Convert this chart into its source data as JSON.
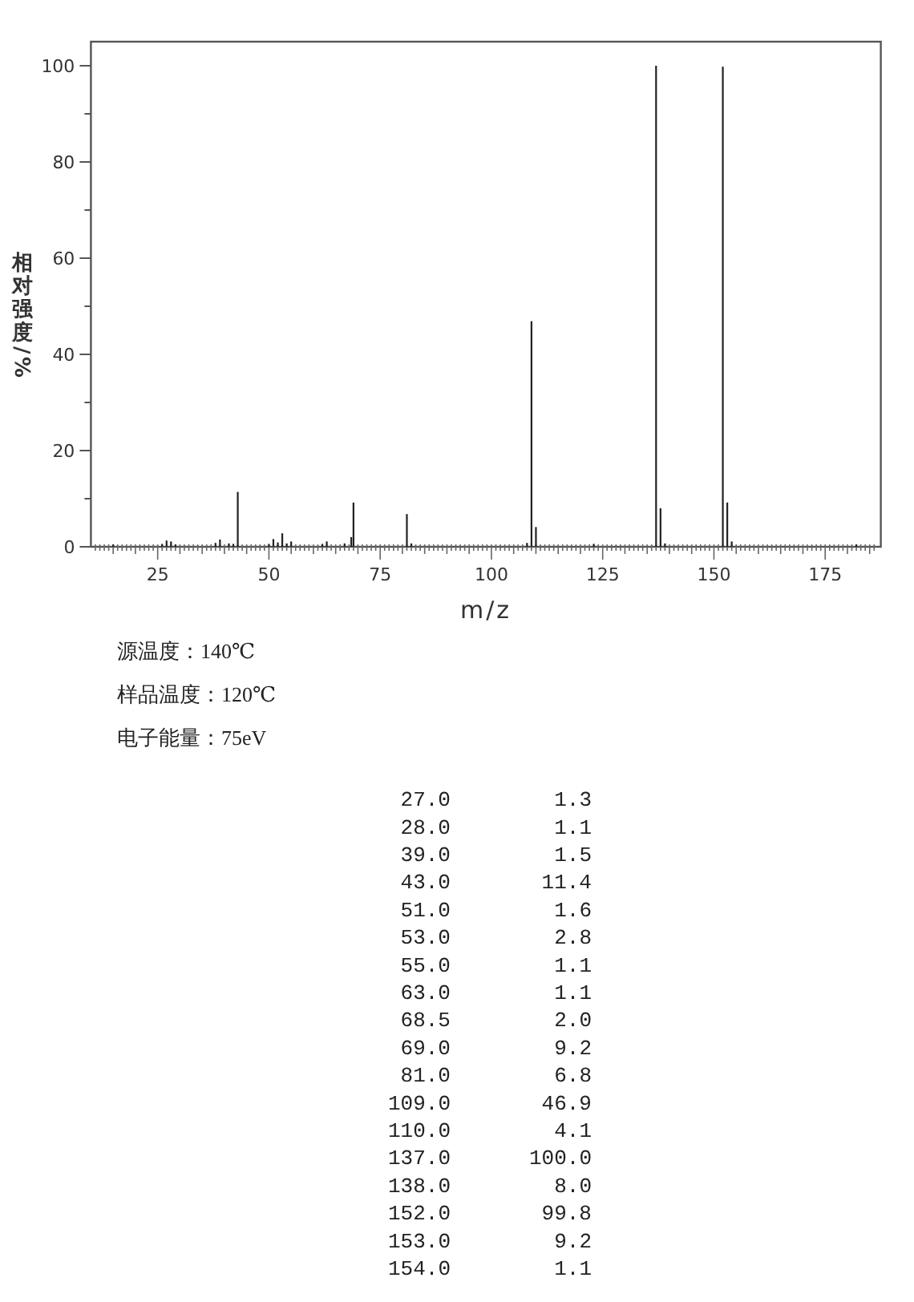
{
  "chart_data": [
    {
      "type": "bar",
      "xlabel": "m/z",
      "ylabel": "相对强度/%",
      "xlim": [
        10,
        187.5
      ],
      "ylim": [
        0,
        105
      ],
      "xticks": [
        {
          "value": 11,
          "label": null
        },
        {
          "value": 12,
          "label": null
        },
        {
          "value": 13,
          "label": null
        },
        {
          "value": 14,
          "label": null
        },
        {
          "value": 15,
          "label": null
        },
        {
          "value": 16,
          "label": null
        },
        {
          "value": 17,
          "label": null
        },
        {
          "value": 18,
          "label": null
        },
        {
          "value": 19,
          "label": null
        },
        {
          "value": 20,
          "label": null
        },
        {
          "value": 21,
          "label": null
        },
        {
          "value": 22,
          "label": null
        },
        {
          "value": 23,
          "label": null
        },
        {
          "value": 24,
          "label": null
        },
        25,
        {
          "value": 26,
          "label": null
        },
        {
          "value": 27,
          "label": null
        },
        {
          "value": 28,
          "label": null
        },
        {
          "value": 29,
          "label": null
        },
        {
          "value": 30,
          "label": null
        },
        {
          "value": 31,
          "label": null
        },
        {
          "value": 32,
          "label": null
        },
        {
          "value": 33,
          "label": null
        },
        {
          "value": 34,
          "label": null
        },
        {
          "value": 35,
          "label": null
        },
        {
          "value": 36,
          "label": null
        },
        {
          "value": 37,
          "label": null
        },
        {
          "value": 38,
          "label": null
        },
        {
          "value": 39,
          "label": null
        },
        {
          "value": 40,
          "label": null
        },
        {
          "value": 41,
          "label": null
        },
        {
          "value": 42,
          "label": null
        },
        {
          "value": 43,
          "label": null
        },
        {
          "value": 44,
          "label": null
        },
        {
          "value": 45,
          "label": null
        },
        {
          "value": 46,
          "label": null
        },
        {
          "value": 47,
          "label": null
        },
        {
          "value": 48,
          "label": null
        },
        {
          "value": 49,
          "label": null
        },
        50,
        {
          "value": 51,
          "label": null
        },
        {
          "value": 52,
          "label": null
        },
        {
          "value": 53,
          "label": null
        },
        {
          "value": 54,
          "label": null
        },
        {
          "value": 55,
          "label": null
        },
        {
          "value": 56,
          "label": null
        },
        {
          "value": 57,
          "label": null
        },
        {
          "value": 58,
          "label": null
        },
        {
          "value": 59,
          "label": null
        },
        {
          "value": 60,
          "label": null
        },
        {
          "value": 61,
          "label": null
        },
        {
          "value": 62,
          "label": null
        },
        {
          "value": 63,
          "label": null
        },
        {
          "value": 64,
          "label": null
        },
        {
          "value": 65,
          "label": null
        },
        {
          "value": 66,
          "label": null
        },
        {
          "value": 67,
          "label": null
        },
        {
          "value": 68,
          "label": null
        },
        {
          "value": 69,
          "label": null
        },
        {
          "value": 70,
          "label": null
        },
        {
          "value": 71,
          "label": null
        },
        {
          "value": 72,
          "label": null
        },
        {
          "value": 73,
          "label": null
        },
        {
          "value": 74,
          "label": null
        },
        75,
        {
          "value": 76,
          "label": null
        },
        {
          "value": 77,
          "label": null
        },
        {
          "value": 78,
          "label": null
        },
        {
          "value": 79,
          "label": null
        },
        {
          "value": 80,
          "label": null
        },
        {
          "value": 81,
          "label": null
        },
        {
          "value": 82,
          "label": null
        },
        {
          "value": 83,
          "label": null
        },
        {
          "value": 84,
          "label": null
        },
        {
          "value": 85,
          "label": null
        },
        {
          "value": 86,
          "label": null
        },
        {
          "value": 87,
          "label": null
        },
        {
          "value": 88,
          "label": null
        },
        {
          "value": 89,
          "label": null
        },
        {
          "value": 90,
          "label": null
        },
        {
          "value": 91,
          "label": null
        },
        {
          "value": 92,
          "label": null
        },
        {
          "value": 93,
          "label": null
        },
        {
          "value": 94,
          "label": null
        },
        {
          "value": 95,
          "label": null
        },
        {
          "value": 96,
          "label": null
        },
        {
          "value": 97,
          "label": null
        },
        {
          "value": 98,
          "label": null
        },
        {
          "value": 99,
          "label": null
        },
        100,
        {
          "value": 101,
          "label": null
        },
        {
          "value": 102,
          "label": null
        },
        {
          "value": 103,
          "label": null
        },
        {
          "value": 104,
          "label": null
        },
        {
          "value": 105,
          "label": null
        },
        {
          "value": 106,
          "label": null
        },
        {
          "value": 107,
          "label": null
        },
        {
          "value": 108,
          "label": null
        },
        {
          "value": 109,
          "label": null
        },
        {
          "value": 110,
          "label": null
        },
        {
          "value": 111,
          "label": null
        },
        {
          "value": 112,
          "label": null
        },
        {
          "value": 113,
          "label": null
        },
        {
          "value": 114,
          "label": null
        },
        {
          "value": 115,
          "label": null
        },
        {
          "value": 116,
          "label": null
        },
        {
          "value": 117,
          "label": null
        },
        {
          "value": 118,
          "label": null
        },
        {
          "value": 119,
          "label": null
        },
        {
          "value": 120,
          "label": null
        },
        {
          "value": 121,
          "label": null
        },
        {
          "value": 122,
          "label": null
        },
        {
          "value": 123,
          "label": null
        },
        {
          "value": 124,
          "label": null
        },
        125,
        {
          "value": 126,
          "label": null
        },
        {
          "value": 127,
          "label": null
        },
        {
          "value": 128,
          "label": null
        },
        {
          "value": 129,
          "label": null
        },
        {
          "value": 130,
          "label": null
        },
        {
          "value": 131,
          "label": null
        },
        {
          "value": 132,
          "label": null
        },
        {
          "value": 133,
          "label": null
        },
        {
          "value": 134,
          "label": null
        },
        {
          "value": 135,
          "label": null
        },
        {
          "value": 136,
          "label": null
        },
        {
          "value": 137,
          "label": null
        },
        {
          "value": 138,
          "label": null
        },
        {
          "value": 139,
          "label": null
        },
        {
          "value": 140,
          "label": null
        },
        {
          "value": 141,
          "label": null
        },
        {
          "value": 142,
          "label": null
        },
        {
          "value": 143,
          "label": null
        },
        {
          "value": 144,
          "label": null
        },
        {
          "value": 145,
          "label": null
        },
        {
          "value": 146,
          "label": null
        },
        {
          "value": 147,
          "label": null
        },
        {
          "value": 148,
          "label": null
        },
        {
          "value": 149,
          "label": null
        },
        150,
        {
          "value": 151,
          "label": null
        },
        {
          "value": 152,
          "label": null
        },
        {
          "value": 153,
          "label": null
        },
        {
          "value": 154,
          "label": null
        },
        {
          "value": 155,
          "label": null
        },
        {
          "value": 156,
          "label": null
        },
        {
          "value": 157,
          "label": null
        },
        {
          "value": 158,
          "label": null
        },
        {
          "value": 159,
          "label": null
        },
        {
          "value": 160,
          "label": null
        },
        {
          "value": 161,
          "label": null
        },
        {
          "value": 162,
          "label": null
        },
        {
          "value": 163,
          "label": null
        },
        {
          "value": 164,
          "label": null
        },
        {
          "value": 165,
          "label": null
        },
        {
          "value": 166,
          "label": null
        },
        {
          "value": 167,
          "label": null
        },
        {
          "value": 168,
          "label": null
        },
        {
          "value": 169,
          "label": null
        },
        {
          "value": 170,
          "label": null
        },
        {
          "value": 171,
          "label": null
        },
        {
          "value": 172,
          "label": null
        },
        {
          "value": 173,
          "label": null
        },
        {
          "value": 174,
          "label": null
        },
        175,
        {
          "value": 176,
          "label": null
        },
        {
          "value": 177,
          "label": null
        },
        {
          "value": 178,
          "label": null
        },
        {
          "value": 179,
          "label": null
        },
        {
          "value": 180,
          "label": null
        },
        {
          "value": 181,
          "label": null
        },
        {
          "value": 182,
          "label": null
        },
        {
          "value": 183,
          "label": null
        },
        {
          "value": 184,
          "label": null
        },
        {
          "value": 185,
          "label": null
        },
        {
          "value": 186,
          "label": null
        }
      ],
      "yticks": [
        0,
        {
          "value": 10,
          "label": null
        },
        20,
        {
          "value": 30,
          "label": null
        },
        40,
        {
          "value": 50,
          "label": null
        },
        60,
        {
          "value": 70,
          "label": null
        },
        80,
        {
          "value": 90,
          "label": null
        },
        100
      ],
      "series": [
        {
          "color": "#222222",
          "x": [
            15,
            26,
            27,
            28,
            29,
            38,
            39,
            41,
            42,
            43,
            50,
            51,
            52,
            53,
            54,
            55,
            62,
            63,
            67,
            68.5,
            69,
            81,
            82,
            108,
            109,
            110,
            123,
            137,
            138,
            139,
            152,
            153,
            154,
            182
          ],
          "values": [
            0.5,
            0.6,
            1.3,
            1.1,
            0.5,
            0.8,
            1.5,
            0.7,
            0.6,
            11.4,
            0.6,
            1.6,
            0.9,
            2.8,
            0.7,
            1.1,
            0.6,
            1.1,
            0.7,
            2.0,
            9.2,
            6.8,
            0.7,
            0.8,
            46.9,
            4.1,
            0.6,
            100.0,
            8.0,
            0.7,
            99.8,
            9.2,
            1.1,
            0.5
          ]
        }
      ],
      "annotations": [
        "源温度：140℃",
        "样品温度：120℃",
        "电子能量：75eV"
      ]
    },
    {
      "type": "other",
      "categories": [
        "27.0",
        "28.0",
        "39.0",
        "43.0",
        "51.0",
        "53.0",
        "55.0",
        "63.0",
        "68.5",
        "69.0",
        "81.0",
        "109.0",
        "110.0",
        "137.0",
        "138.0",
        "152.0",
        "153.0",
        "154.0"
      ],
      "value_labels": [
        "1.3",
        "1.1",
        "1.5",
        "11.4",
        "1.6",
        "2.8",
        "1.1",
        "1.1",
        "2.0",
        "9.2",
        "6.8",
        "46.9",
        "4.1",
        "100.0",
        "8.0",
        "99.8",
        "9.2",
        "1.1"
      ]
    }
  ]
}
